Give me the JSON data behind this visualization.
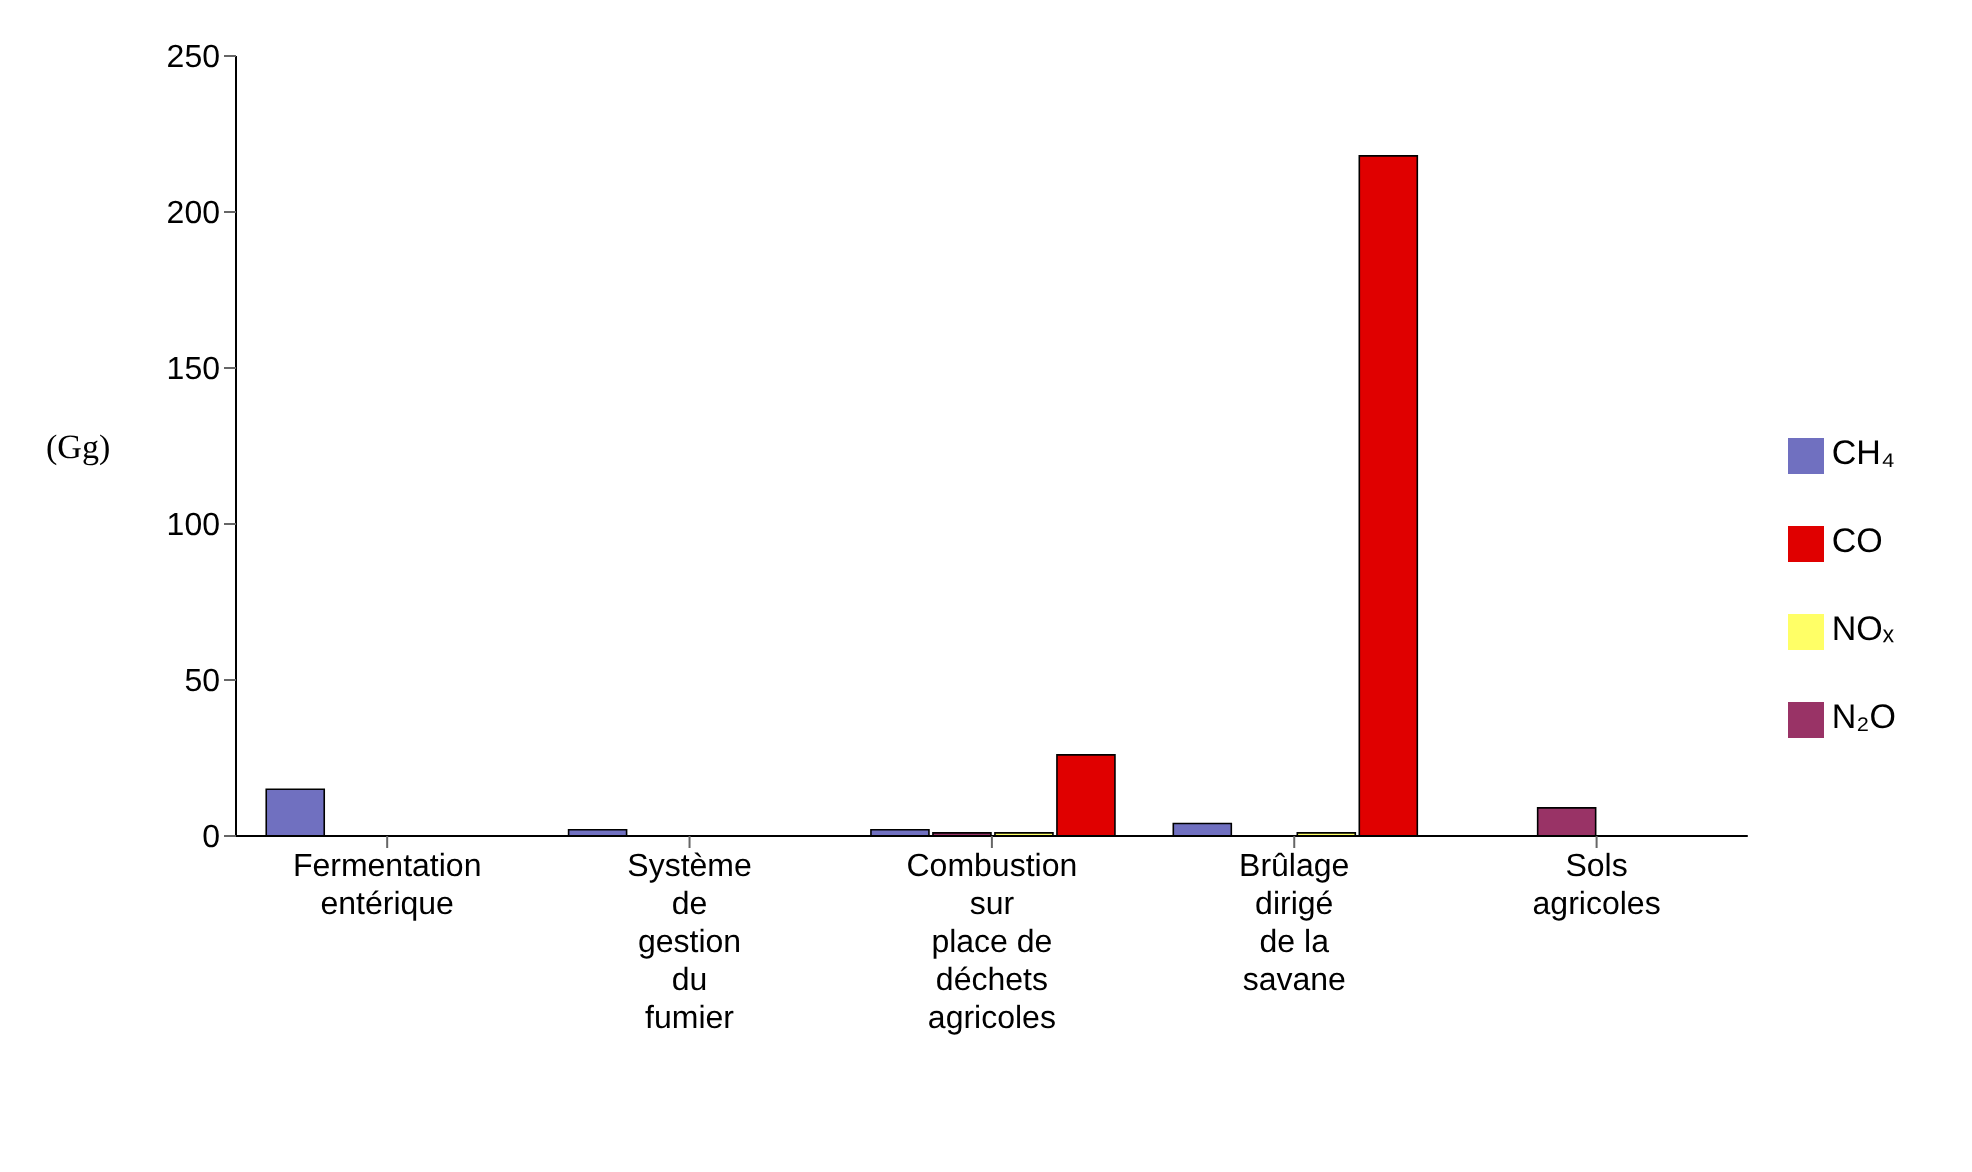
{
  "chart_data": {
    "type": "bar",
    "ylabel": "(Gg)",
    "categories": [
      "Fermentation entérique",
      "Système de gestion du fumier",
      "Combustion sur place de déchets agricoles",
      "Brûlage dirigé de la savane",
      "Sols agricoles"
    ],
    "series": [
      {
        "name": "CH₄",
        "color": "#7070c0",
        "values": [
          15,
          2,
          2,
          4,
          null
        ]
      },
      {
        "name": "N₂O",
        "color": "#993366",
        "values": [
          null,
          null,
          1,
          null,
          9
        ]
      },
      {
        "name": "NOₓ",
        "color": "#ffff66",
        "values": [
          null,
          null,
          1,
          1,
          null
        ]
      },
      {
        "name": "CO",
        "color": "#e00000",
        "values": [
          null,
          null,
          26,
          218,
          null
        ]
      }
    ],
    "ylim": [
      0,
      250
    ],
    "yticks": [
      0,
      50,
      100,
      150,
      200,
      250
    ],
    "grid": false,
    "legend": "right"
  }
}
